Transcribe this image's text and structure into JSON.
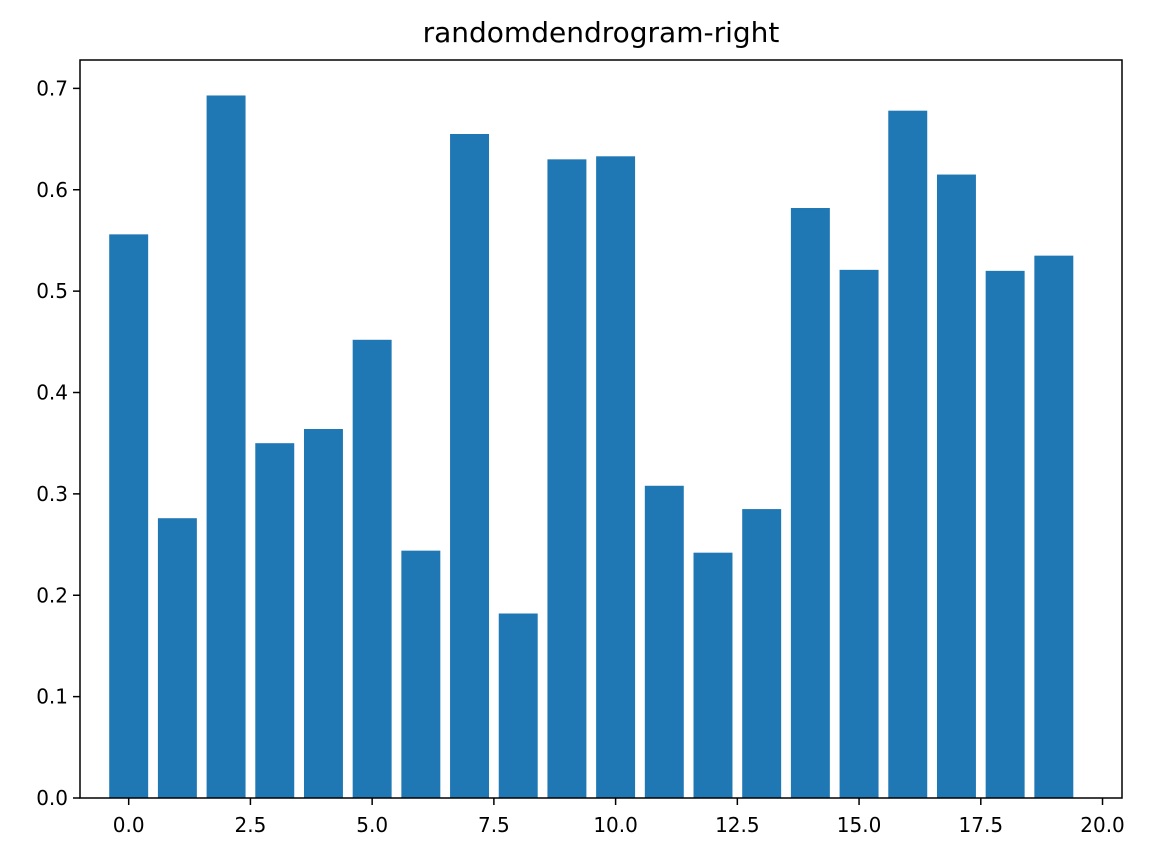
{
  "chart_data": {
    "type": "bar",
    "title": "randomdendrogram-right",
    "xlabel": "",
    "ylabel": "",
    "x": [
      0,
      1,
      2,
      3,
      4,
      5,
      6,
      7,
      8,
      9,
      10,
      11,
      12,
      13,
      14,
      15,
      16,
      17,
      18,
      19
    ],
    "values": [
      0.556,
      0.276,
      0.693,
      0.35,
      0.364,
      0.452,
      0.244,
      0.655,
      0.182,
      0.63,
      0.633,
      0.308,
      0.242,
      0.285,
      0.582,
      0.521,
      0.678,
      0.615,
      0.52,
      0.535
    ],
    "bar_color": "#1f77b4",
    "xlim": [
      -1.0,
      20.4
    ],
    "ylim": [
      0,
      0.728
    ],
    "xticks": [
      0.0,
      2.5,
      5.0,
      7.5,
      10.0,
      12.5,
      15.0,
      17.5,
      20.0
    ],
    "xtick_labels": [
      "0.0",
      "2.5",
      "5.0",
      "7.5",
      "10.0",
      "12.5",
      "15.0",
      "17.5",
      "20.0"
    ],
    "yticks": [
      0.0,
      0.1,
      0.2,
      0.3,
      0.4,
      0.5,
      0.6,
      0.7
    ],
    "ytick_labels": [
      "0.0",
      "0.1",
      "0.2",
      "0.3",
      "0.4",
      "0.5",
      "0.6",
      "0.7"
    ],
    "grid": false,
    "legend": "none"
  }
}
